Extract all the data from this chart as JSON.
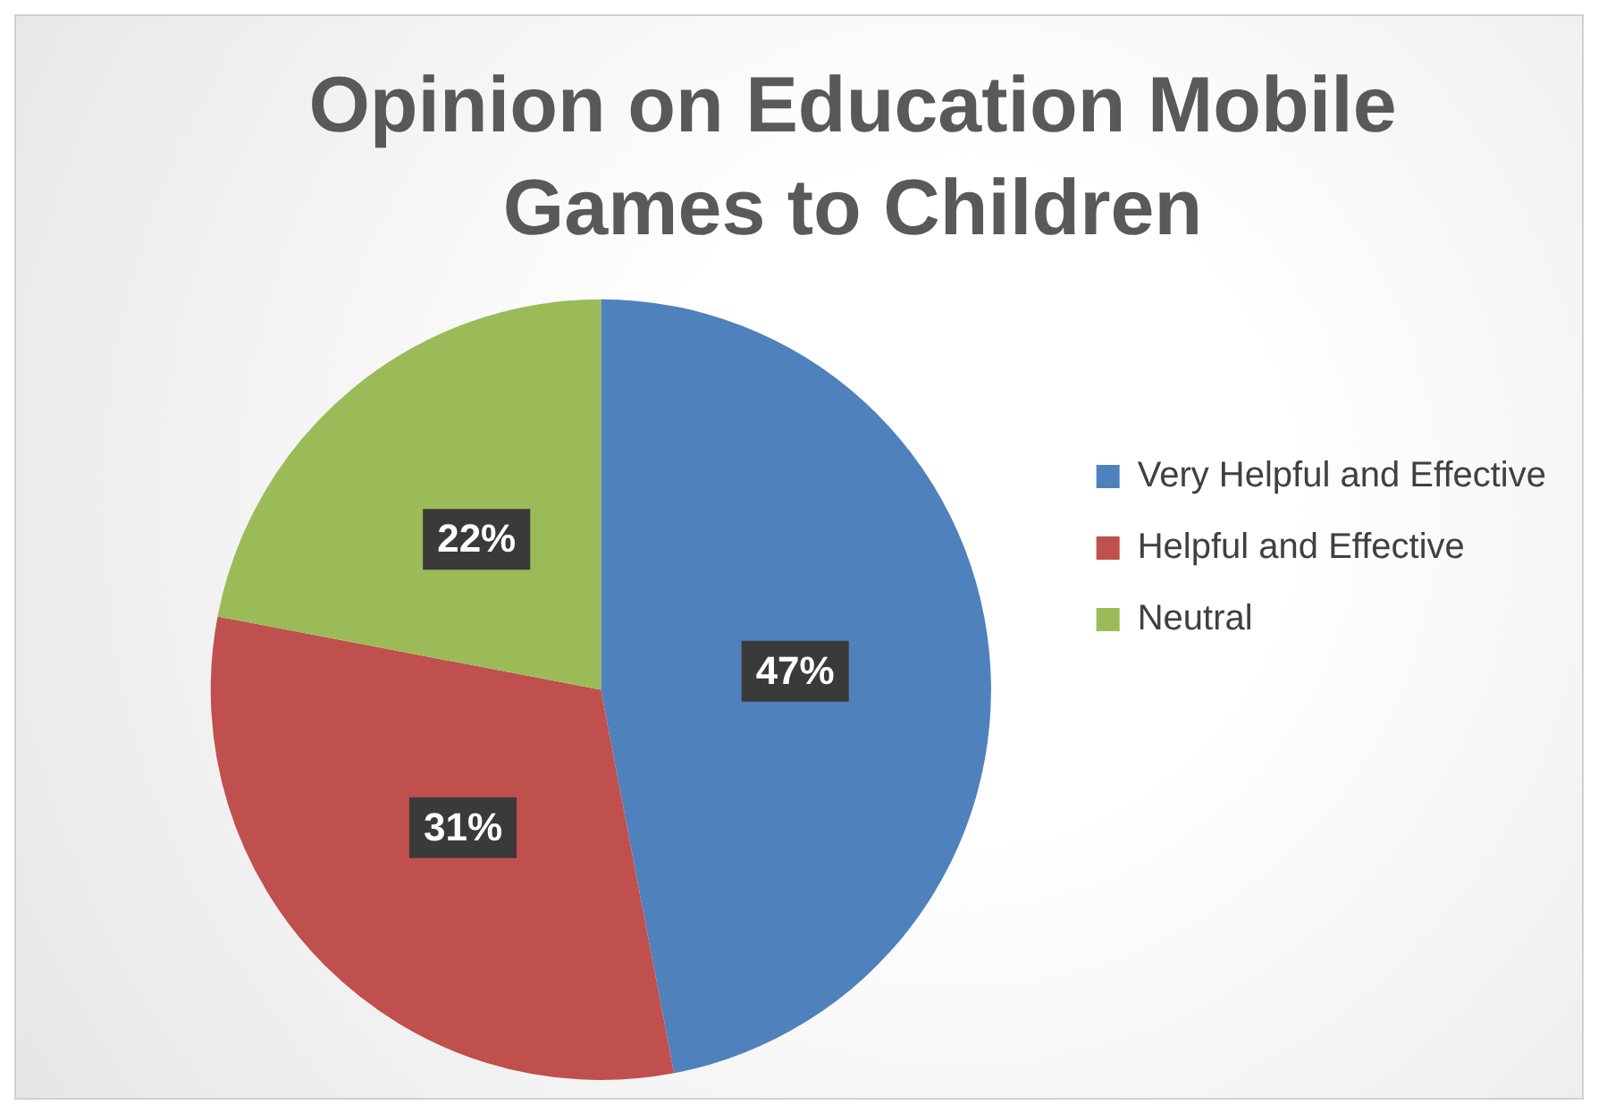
{
  "chart_data": {
    "type": "pie",
    "title": [
      "Opinion on Education Mobile",
      "Games to Children"
    ],
    "categories": [
      "Very Helpful and Effective",
      "Helpful and Effective",
      "Neutral"
    ],
    "values": [
      47,
      31,
      22
    ],
    "colors": [
      "#4f81bd",
      "#c0504d",
      "#9bbb59"
    ],
    "value_labels": [
      "47%",
      "31%",
      "22%"
    ],
    "legend": "right"
  }
}
